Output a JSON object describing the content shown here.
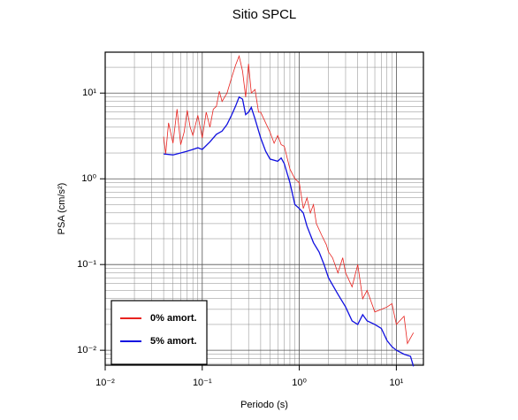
{
  "chart_data": {
    "type": "line",
    "title": "Sitio SPCL",
    "x_label": "Periodo (s)",
    "y_label": "PSA (cm/s²)",
    "x_log": true,
    "y_log": true,
    "grid": true,
    "minor_grid": true,
    "legend_position": "lower left",
    "xlim": [
      0.01,
      19
    ],
    "ylim": [
      0.0067,
      30
    ],
    "xticks": [
      {
        "value": 0.01,
        "label": "10⁻²"
      },
      {
        "value": 0.1,
        "label": "10⁻¹"
      },
      {
        "value": 1,
        "label": "10⁰"
      },
      {
        "value": 10,
        "label": "10¹"
      }
    ],
    "yticks": [
      {
        "value": 0.01,
        "label": "10⁻²"
      },
      {
        "value": 0.1,
        "label": "10⁻¹"
      },
      {
        "value": 1,
        "label": "10⁰"
      },
      {
        "value": 10,
        "label": "10¹"
      }
    ],
    "series": [
      {
        "name": "0% amort.",
        "color": "#e8231f",
        "x": [
          0.04,
          0.042,
          0.045,
          0.05,
          0.055,
          0.06,
          0.065,
          0.07,
          0.075,
          0.08,
          0.09,
          0.1,
          0.11,
          0.12,
          0.13,
          0.14,
          0.15,
          0.16,
          0.18,
          0.2,
          0.22,
          0.24,
          0.26,
          0.28,
          0.3,
          0.32,
          0.35,
          0.38,
          0.4,
          0.45,
          0.5,
          0.55,
          0.6,
          0.65,
          0.7,
          0.8,
          0.9,
          1.0,
          1.1,
          1.2,
          1.3,
          1.4,
          1.5,
          1.7,
          1.9,
          2,
          2.2,
          2.5,
          2.8,
          3,
          3.5,
          4,
          4.5,
          5,
          6,
          7,
          8,
          9,
          10,
          12,
          13,
          15
        ],
        "values": [
          3.1,
          1.95,
          4.5,
          2.6,
          6.5,
          2.5,
          3.5,
          6.3,
          4,
          3.2,
          5.5,
          3,
          6,
          4,
          6.5,
          7,
          10.5,
          8,
          10,
          15,
          21,
          27,
          18,
          9,
          22,
          10,
          11,
          6,
          6,
          4.5,
          3.5,
          2.6,
          3.2,
          2.5,
          2.4,
          1.3,
          1.0,
          0.9,
          0.45,
          0.6,
          0.4,
          0.5,
          0.3,
          0.22,
          0.17,
          0.14,
          0.12,
          0.08,
          0.12,
          0.08,
          0.055,
          0.1,
          0.04,
          0.05,
          0.028,
          0.03,
          0.032,
          0.035,
          0.02,
          0.025,
          0.012,
          0.016
        ]
      },
      {
        "name": "5% amort.",
        "color": "#1010e0",
        "x": [
          0.04,
          0.05,
          0.06,
          0.07,
          0.08,
          0.09,
          0.1,
          0.12,
          0.14,
          0.16,
          0.18,
          0.2,
          0.22,
          0.24,
          0.26,
          0.28,
          0.3,
          0.32,
          0.35,
          0.4,
          0.45,
          0.5,
          0.6,
          0.65,
          0.7,
          0.8,
          0.9,
          1,
          1.1,
          1.2,
          1.4,
          1.6,
          1.8,
          2,
          2.5,
          3,
          3.5,
          4,
          4.5,
          5,
          6,
          7,
          8,
          9,
          10,
          12,
          14,
          15
        ],
        "values": [
          1.95,
          1.9,
          2.0,
          2.1,
          2.2,
          2.3,
          2.2,
          2.7,
          3.3,
          3.6,
          4.3,
          5.5,
          7,
          9,
          8.5,
          5.6,
          6,
          6.8,
          5,
          3,
          2.1,
          1.7,
          1.6,
          1.75,
          1.5,
          0.9,
          0.5,
          0.45,
          0.4,
          0.28,
          0.18,
          0.14,
          0.1,
          0.07,
          0.045,
          0.032,
          0.022,
          0.02,
          0.026,
          0.022,
          0.02,
          0.018,
          0.013,
          0.011,
          0.01,
          0.009,
          0.0085,
          0.0065
        ]
      }
    ]
  }
}
